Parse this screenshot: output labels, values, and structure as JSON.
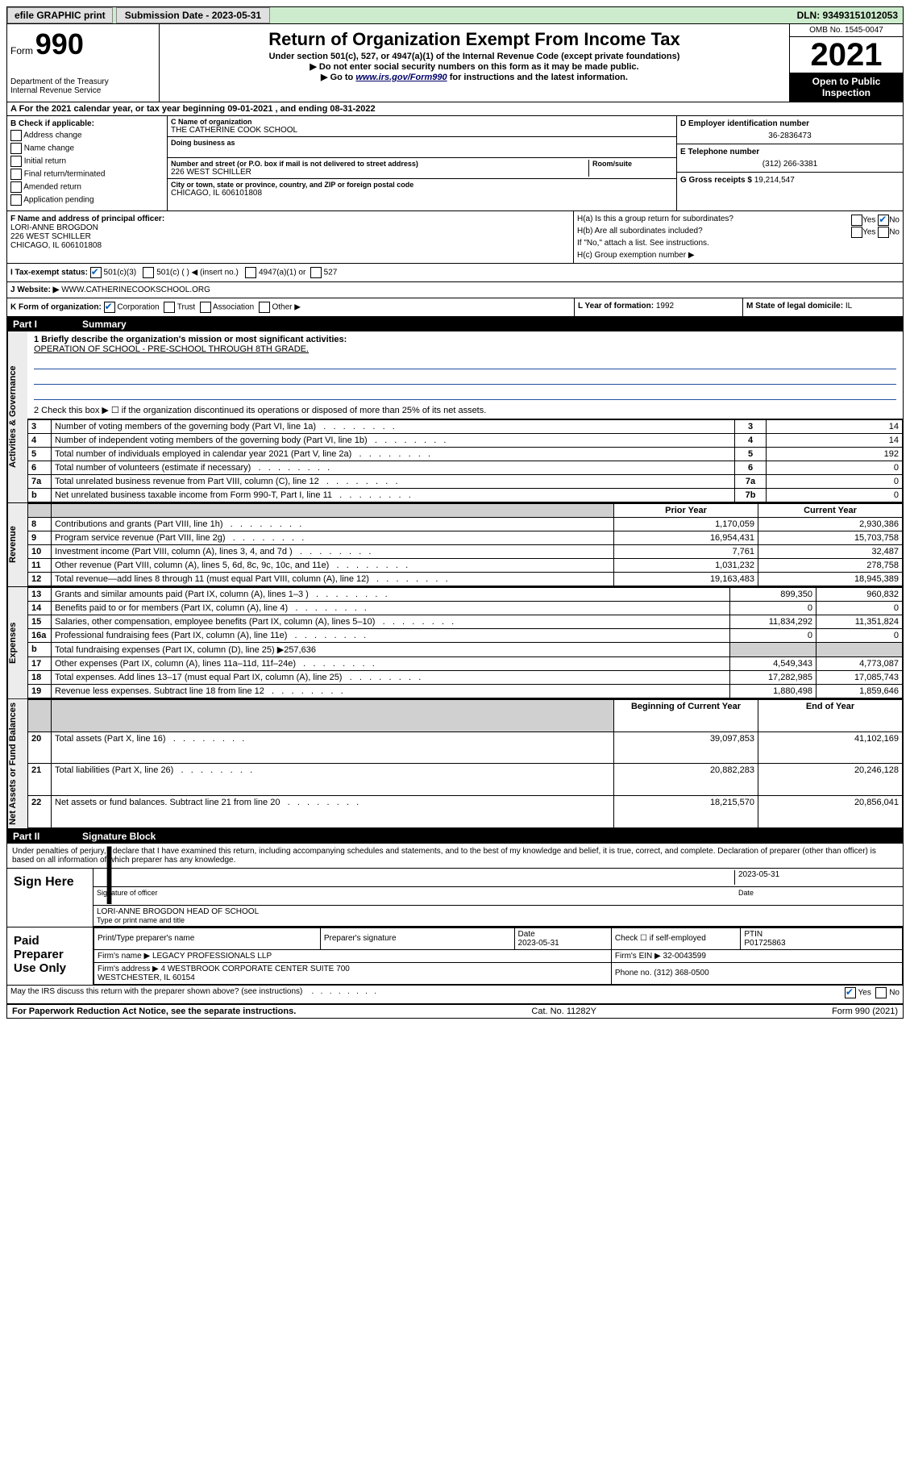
{
  "topbar": {
    "efile": "efile GRAPHIC print",
    "submission_label": "Submission Date - 2023-05-31",
    "dln": "DLN: 93493151012053"
  },
  "header": {
    "form_prefix": "Form",
    "form_number": "990",
    "dept": "Department of the Treasury\nInternal Revenue Service",
    "title": "Return of Organization Exempt From Income Tax",
    "subtitle": "Under section 501(c), 527, or 4947(a)(1) of the Internal Revenue Code (except private foundations)",
    "line1": "Do not enter social security numbers on this form as it may be made public.",
    "line2_pre": "Go to ",
    "line2_link": "www.irs.gov/Form990",
    "line2_post": " for instructions and the latest information.",
    "omb": "OMB No. 1545-0047",
    "year": "2021",
    "open_public": "Open to Public Inspection"
  },
  "rowA": "A For the 2021 calendar year, or tax year beginning 09-01-2021    , and ending 08-31-2022",
  "sectionB": {
    "label": "B Check if applicable:",
    "opts": [
      "Address change",
      "Name change",
      "Initial return",
      "Final return/terminated",
      "Amended return",
      "Application pending"
    ]
  },
  "sectionC": {
    "name_label": "C Name of organization",
    "name": "THE CATHERINE COOK SCHOOL",
    "dba_label": "Doing business as",
    "addr_label": "Number and street (or P.O. box if mail is not delivered to street address)",
    "room_label": "Room/suite",
    "addr": "226 WEST SCHILLER",
    "city_label": "City or town, state or province, country, and ZIP or foreign postal code",
    "city": "CHICAGO, IL  606101808"
  },
  "sectionDE": {
    "d_label": "D Employer identification number",
    "ein": "36-2836473",
    "e_label": "E Telephone number",
    "phone": "(312) 266-3381",
    "g_label": "G Gross receipts $ ",
    "g_val": "19,214,547"
  },
  "sectionF": {
    "label": "F Name and address of principal officer:",
    "name": "LORI-ANNE BROGDON",
    "addr1": "226 WEST SCHILLER",
    "addr2": "CHICAGO, IL  606101808"
  },
  "sectionH": {
    "ha": "H(a)  Is this a group return for subordinates?",
    "hb": "H(b)  Are all subordinates included?",
    "hb_note": "If \"No,\" attach a list. See instructions.",
    "hc": "H(c)  Group exemption number ▶",
    "yes": "Yes",
    "no": "No"
  },
  "rowI": {
    "label": "I   Tax-exempt status:",
    "opt1": "501(c)(3)",
    "opt2": "501(c) (  ) ◀ (insert no.)",
    "opt3": "4947(a)(1) or",
    "opt4": "527"
  },
  "rowJ": {
    "label": "J   Website: ▶",
    "value": "WWW.CATHERINECOOKSCHOOL.ORG"
  },
  "rowK": {
    "label": "K Form of organization:",
    "opts": [
      "Corporation",
      "Trust",
      "Association",
      "Other ▶"
    ],
    "l_label": "L Year of formation: ",
    "l_val": "1992",
    "m_label": "M State of legal domicile: ",
    "m_val": "IL"
  },
  "part1": {
    "label": "Part I",
    "title": "Summary"
  },
  "briefly": {
    "q": "1  Briefly describe the organization's mission or most significant activities:",
    "ans": "OPERATION OF SCHOOL - PRE-SCHOOL THROUGH 8TH GRADE."
  },
  "gov": {
    "line2": "2   Check this box ▶ ☐  if the organization discontinued its operations or disposed of more than 25% of its net assets.",
    "rows": [
      {
        "n": "3",
        "t": "Number of voting members of the governing body (Part VI, line 1a)",
        "k": "3",
        "v": "14"
      },
      {
        "n": "4",
        "t": "Number of independent voting members of the governing body (Part VI, line 1b)",
        "k": "4",
        "v": "14"
      },
      {
        "n": "5",
        "t": "Total number of individuals employed in calendar year 2021 (Part V, line 2a)",
        "k": "5",
        "v": "192"
      },
      {
        "n": "6",
        "t": "Total number of volunteers (estimate if necessary)",
        "k": "6",
        "v": "0"
      },
      {
        "n": "7a",
        "t": "Total unrelated business revenue from Part VIII, column (C), line 12",
        "k": "7a",
        "v": "0"
      },
      {
        "n": "b",
        "t": "Net unrelated business taxable income from Form 990-T, Part I, line 11",
        "k": "7b",
        "v": "0"
      }
    ]
  },
  "yearcols": {
    "prior": "Prior Year",
    "current": "Current Year",
    "boy": "Beginning of Current Year",
    "eoy": "End of Year"
  },
  "revenue": [
    {
      "n": "8",
      "t": "Contributions and grants (Part VIII, line 1h)",
      "p": "1,170,059",
      "c": "2,930,386"
    },
    {
      "n": "9",
      "t": "Program service revenue (Part VIII, line 2g)",
      "p": "16,954,431",
      "c": "15,703,758"
    },
    {
      "n": "10",
      "t": "Investment income (Part VIII, column (A), lines 3, 4, and 7d )",
      "p": "7,761",
      "c": "32,487"
    },
    {
      "n": "11",
      "t": "Other revenue (Part VIII, column (A), lines 5, 6d, 8c, 9c, 10c, and 11e)",
      "p": "1,031,232",
      "c": "278,758"
    },
    {
      "n": "12",
      "t": "Total revenue—add lines 8 through 11 (must equal Part VIII, column (A), line 12)",
      "p": "19,163,483",
      "c": "18,945,389"
    }
  ],
  "expenses": [
    {
      "n": "13",
      "t": "Grants and similar amounts paid (Part IX, column (A), lines 1–3 )",
      "p": "899,350",
      "c": "960,832"
    },
    {
      "n": "14",
      "t": "Benefits paid to or for members (Part IX, column (A), line 4)",
      "p": "0",
      "c": "0"
    },
    {
      "n": "15",
      "t": "Salaries, other compensation, employee benefits (Part IX, column (A), lines 5–10)",
      "p": "11,834,292",
      "c": "11,351,824"
    },
    {
      "n": "16a",
      "t": "Professional fundraising fees (Part IX, column (A), line 11e)",
      "p": "0",
      "c": "0"
    },
    {
      "n": "b",
      "t": "Total fundraising expenses (Part IX, column (D), line 25) ▶257,636",
      "shade": true
    },
    {
      "n": "17",
      "t": "Other expenses (Part IX, column (A), lines 11a–11d, 11f–24e)",
      "p": "4,549,343",
      "c": "4,773,087"
    },
    {
      "n": "18",
      "t": "Total expenses. Add lines 13–17 (must equal Part IX, column (A), line 25)",
      "p": "17,282,985",
      "c": "17,085,743"
    },
    {
      "n": "19",
      "t": "Revenue less expenses. Subtract line 18 from line 12",
      "p": "1,880,498",
      "c": "1,859,646"
    }
  ],
  "netassets": [
    {
      "n": "20",
      "t": "Total assets (Part X, line 16)",
      "p": "39,097,853",
      "c": "41,102,169"
    },
    {
      "n": "21",
      "t": "Total liabilities (Part X, line 26)",
      "p": "20,882,283",
      "c": "20,246,128"
    },
    {
      "n": "22",
      "t": "Net assets or fund balances. Subtract line 21 from line 20",
      "p": "18,215,570",
      "c": "20,856,041"
    }
  ],
  "side_labels": {
    "gov": "Activities & Governance",
    "rev": "Revenue",
    "exp": "Expenses",
    "net": "Net Assets or Fund Balances"
  },
  "part2": {
    "label": "Part II",
    "title": "Signature Block"
  },
  "sig": {
    "decl": "Under penalties of perjury, I declare that I have examined this return, including accompanying schedules and statements, and to the best of my knowledge and belief, it is true, correct, and complete. Declaration of preparer (other than officer) is based on all information of which preparer has any knowledge.",
    "sign_here": "Sign Here",
    "sig_label": "Signature of officer",
    "date_label": "Date",
    "date": "2023-05-31",
    "name_title": "LORI-ANNE BROGDON HEAD OF SCHOOL",
    "nt_label": "Type or print name and title"
  },
  "paid": {
    "title": "Paid Preparer Use Only",
    "h1": "Print/Type preparer's name",
    "h2": "Preparer's signature",
    "h3": "Date",
    "h3v": "2023-05-31",
    "h4": "Check ☐ if self-employed",
    "h5": "PTIN",
    "ptin": "P01725863",
    "firm_name_l": "Firm's name    ▶",
    "firm_name": "LEGACY PROFESSIONALS LLP",
    "firm_ein_l": "Firm's EIN ▶",
    "firm_ein": "32-0043599",
    "firm_addr_l": "Firm's address ▶",
    "firm_addr": "4 WESTBROOK CORPORATE CENTER SUITE 700\nWESTCHESTER, IL  60154",
    "phone_l": "Phone no.",
    "phone": "(312) 368-0500"
  },
  "may_discuss": "May the IRS discuss this return with the preparer shown above? (see instructions)",
  "footer": {
    "left": "For Paperwork Reduction Act Notice, see the separate instructions.",
    "mid": "Cat. No. 11282Y",
    "right": "Form 990 (2021)"
  }
}
